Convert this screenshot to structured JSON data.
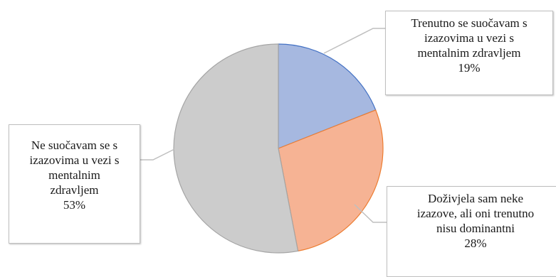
{
  "chart_data": {
    "type": "pie",
    "title": "",
    "start_angle_deg": 0,
    "direction": "clockwise",
    "slices": [
      {
        "label": "Trenutno se suočavam s izazovima u vezi s mentalnim zdravljem",
        "percent_label": "19%",
        "value": 19,
        "fill": "#a6b8e0",
        "stroke": "#4472c4"
      },
      {
        "label": "Doživjela sam neke izazove, ali oni trenutno nisu dominantni",
        "percent_label": "28%",
        "value": 28,
        "fill": "#f6b394",
        "stroke": "#ed7d31"
      },
      {
        "label": "Ne suočavam se s izazovima u vezi s mentalnim zdravljem",
        "percent_label": "53%",
        "value": 53,
        "fill": "#cccccc",
        "stroke": "#a5a5a5"
      }
    ]
  },
  "labels": [
    {
      "lines": [
        "Trenutno se suočavam s",
        "izazovima u vezi s",
        "mentalnim zdravljem"
      ],
      "percent": "19%"
    },
    {
      "lines": [
        "Doživjela sam neke",
        "izazove, ali oni trenutno",
        "nisu dominantni"
      ],
      "percent": "28%"
    },
    {
      "lines": [
        "Ne suočavam se s",
        "izazovima u vezi s",
        "mentalnim",
        "zdravljem"
      ],
      "percent": "53%"
    }
  ]
}
